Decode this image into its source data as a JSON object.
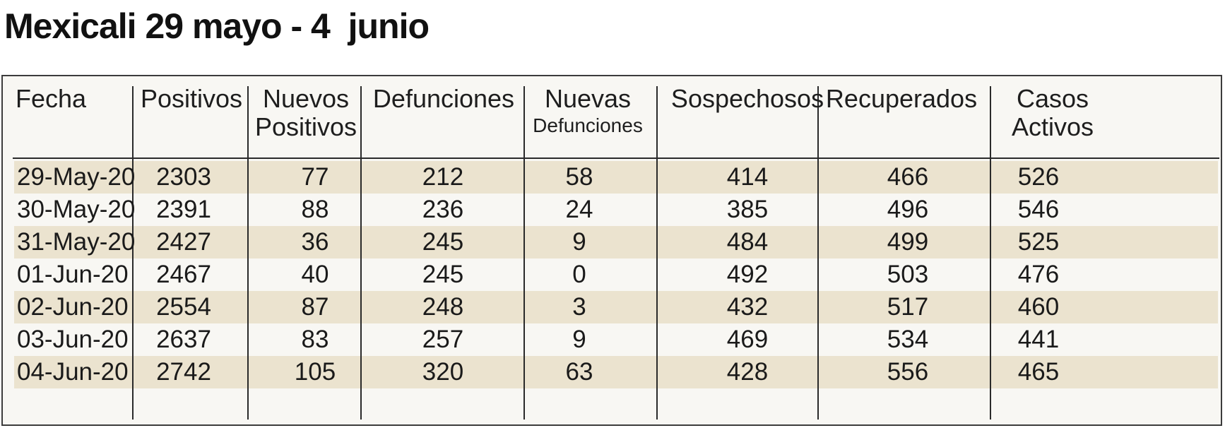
{
  "title": "Mexicali 29 mayo - 4  junio",
  "table": {
    "headers": [
      {
        "key": "fecha",
        "lines": [
          "Fecha"
        ]
      },
      {
        "key": "positivos",
        "lines": [
          "Positivos"
        ]
      },
      {
        "key": "nuevos_positivos",
        "lines": [
          "Nuevos",
          "Positivos"
        ]
      },
      {
        "key": "defunciones",
        "lines": [
          "Defunciones"
        ]
      },
      {
        "key": "nuevas_defunciones",
        "lines": [
          "Nuevas",
          "Defunciones"
        ]
      },
      {
        "key": "sospechosos",
        "lines": [
          "Sospechosos"
        ]
      },
      {
        "key": "recuperados",
        "lines": [
          "Recuperados"
        ]
      },
      {
        "key": "casos_activos",
        "lines": [
          "Casos",
          "Activos"
        ]
      }
    ],
    "rows": [
      [
        "29-May-20",
        "2303",
        "77",
        "212",
        "58",
        "414",
        "466",
        "526"
      ],
      [
        "30-May-20",
        "2391",
        "88",
        "236",
        "24",
        "385",
        "496",
        "546"
      ],
      [
        "31-May-20",
        "2427",
        "36",
        "245",
        "9",
        "484",
        "499",
        "525"
      ],
      [
        "01-Jun-20",
        "2467",
        "40",
        "245",
        "0",
        "492",
        "503",
        "476"
      ],
      [
        "02-Jun-20",
        "2554",
        "87",
        "248",
        "3",
        "432",
        "517",
        "460"
      ],
      [
        "03-Jun-20",
        "2637",
        "83",
        "257",
        "9",
        "469",
        "534",
        "441"
      ],
      [
        "04-Jun-20",
        "2742",
        "105",
        "320",
        "63",
        "428",
        "556",
        "465"
      ]
    ]
  },
  "colors": {
    "row_shade": "#ebe3cf",
    "panel_bg": "#f8f7f3",
    "rule": "#2a2a2a"
  },
  "chart_data": {
    "type": "table",
    "title": "Mexicali 29 mayo - 4  junio",
    "columns": [
      "Fecha",
      "Positivos",
      "Nuevos Positivos",
      "Defunciones",
      "Nuevas Defunciones",
      "Sospechosos",
      "Recuperados",
      "Casos Activos"
    ],
    "categories": [
      "29-May-20",
      "30-May-20",
      "31-May-20",
      "01-Jun-20",
      "02-Jun-20",
      "03-Jun-20",
      "04-Jun-20"
    ],
    "series": [
      {
        "name": "Positivos",
        "values": [
          2303,
          2391,
          2427,
          2467,
          2554,
          2637,
          2742
        ]
      },
      {
        "name": "Nuevos Positivos",
        "values": [
          77,
          88,
          36,
          40,
          87,
          83,
          105
        ]
      },
      {
        "name": "Defunciones",
        "values": [
          212,
          236,
          245,
          245,
          248,
          257,
          320
        ]
      },
      {
        "name": "Nuevas Defunciones",
        "values": [
          58,
          24,
          9,
          0,
          3,
          9,
          63
        ]
      },
      {
        "name": "Sospechosos",
        "values": [
          414,
          385,
          484,
          492,
          432,
          469,
          428
        ]
      },
      {
        "name": "Recuperados",
        "values": [
          466,
          496,
          499,
          503,
          517,
          534,
          556
        ]
      },
      {
        "name": "Casos Activos",
        "values": [
          526,
          546,
          525,
          476,
          460,
          441,
          465
        ]
      }
    ]
  }
}
